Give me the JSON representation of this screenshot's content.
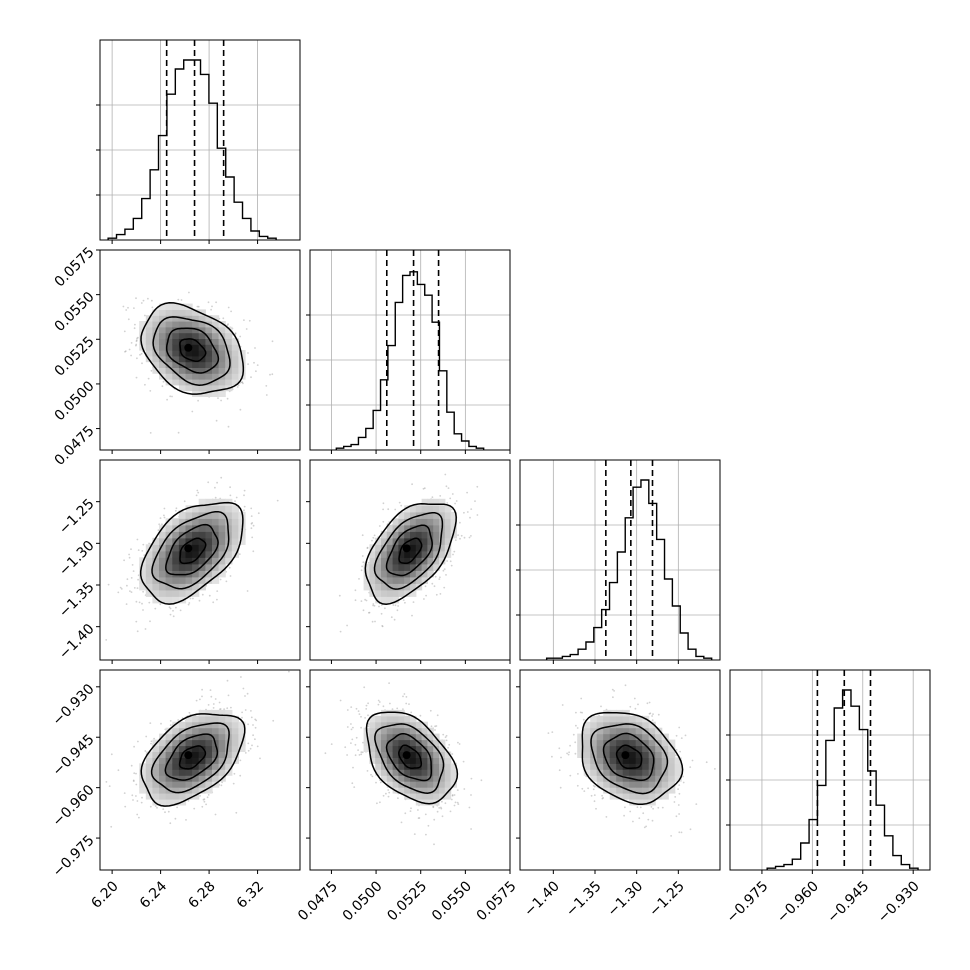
{
  "chart_data": {
    "type": "corner",
    "parameters": [
      {
        "range": [
          6.19,
          6.355
        ],
        "ticks": [
          {
            "v": 6.2,
            "label": "6.20"
          },
          {
            "v": 6.24,
            "label": "6.24"
          },
          {
            "v": 6.28,
            "label": "6.28"
          },
          {
            "v": 6.32,
            "label": "6.32"
          }
        ],
        "mean": 6.266,
        "sd": 0.021,
        "quantiles": [
          6.245,
          6.268,
          6.292
        ],
        "hist": [
          0.01,
          0.03,
          0.06,
          0.12,
          0.23,
          0.39,
          0.58,
          0.81,
          0.95,
          1.0,
          1.0,
          0.92,
          0.76,
          0.51,
          0.35,
          0.21,
          0.12,
          0.05,
          0.02,
          0.01
        ]
      },
      {
        "range": [
          0.0463,
          0.0575
        ],
        "ticks": [
          {
            "v": 0.0475,
            "label": "0.0475"
          },
          {
            "v": 0.05,
            "label": "0.0500"
          },
          {
            "v": 0.0525,
            "label": "0.0525"
          },
          {
            "v": 0.055,
            "label": "0.0550"
          },
          {
            "v": 0.0575,
            "label": "0.0575"
          }
        ],
        "mean": 0.0519,
        "sd": 0.00125,
        "quantiles": [
          0.0506,
          0.0521,
          0.0535
        ],
        "hist": [
          0.01,
          0.02,
          0.03,
          0.07,
          0.12,
          0.22,
          0.39,
          0.58,
          0.82,
          0.97,
          0.99,
          0.92,
          0.86,
          0.71,
          0.44,
          0.21,
          0.09,
          0.05,
          0.02,
          0.01
        ]
      },
      {
        "range": [
          -1.44,
          -1.2
        ],
        "ticks": [
          {
            "v": -1.4,
            "label": "−1.40"
          },
          {
            "v": -1.35,
            "label": "−1.35"
          },
          {
            "v": -1.3,
            "label": "−1.30"
          },
          {
            "v": -1.25,
            "label": "−1.25"
          }
        ],
        "mean": -1.309,
        "sd": 0.03,
        "quantiles": [
          -1.337,
          -1.307,
          -1.281
        ],
        "hist": [
          0.01,
          0.01,
          0.02,
          0.03,
          0.06,
          0.1,
          0.18,
          0.28,
          0.43,
          0.6,
          0.79,
          0.96,
          1.0,
          0.87,
          0.67,
          0.45,
          0.3,
          0.15,
          0.06,
          0.02,
          0.01
        ]
      },
      {
        "range": [
          -0.9845,
          -0.925
        ],
        "ticks": [
          {
            "v": -0.975,
            "label": "−0.975"
          },
          {
            "v": -0.96,
            "label": "−0.960"
          },
          {
            "v": -0.945,
            "label": "−0.945"
          },
          {
            "v": -0.93,
            "label": "−0.930"
          }
        ],
        "mean": -0.951,
        "sd": 0.0068,
        "quantiles": [
          -0.9585,
          -0.9505,
          -0.9427
        ],
        "hist": [
          0.01,
          0.02,
          0.03,
          0.06,
          0.15,
          0.28,
          0.47,
          0.72,
          0.9,
          1.0,
          0.91,
          0.78,
          0.55,
          0.36,
          0.19,
          0.08,
          0.03,
          0.01
        ]
      }
    ],
    "correlations": [
      {
        "i": 1,
        "j": 0,
        "rho": -0.3
      },
      {
        "i": 2,
        "j": 0,
        "rho": 0.48
      },
      {
        "i": 2,
        "j": 1,
        "rho": 0.5
      },
      {
        "i": 3,
        "j": 0,
        "rho": 0.45
      },
      {
        "i": 3,
        "j": 1,
        "rho": -0.42
      },
      {
        "i": 3,
        "j": 2,
        "rho": -0.25
      }
    ],
    "contour_levels_sigma": [
      0.5,
      1.0,
      1.5,
      2.0
    ],
    "quantile_line_style": "dashed",
    "grid": true
  }
}
